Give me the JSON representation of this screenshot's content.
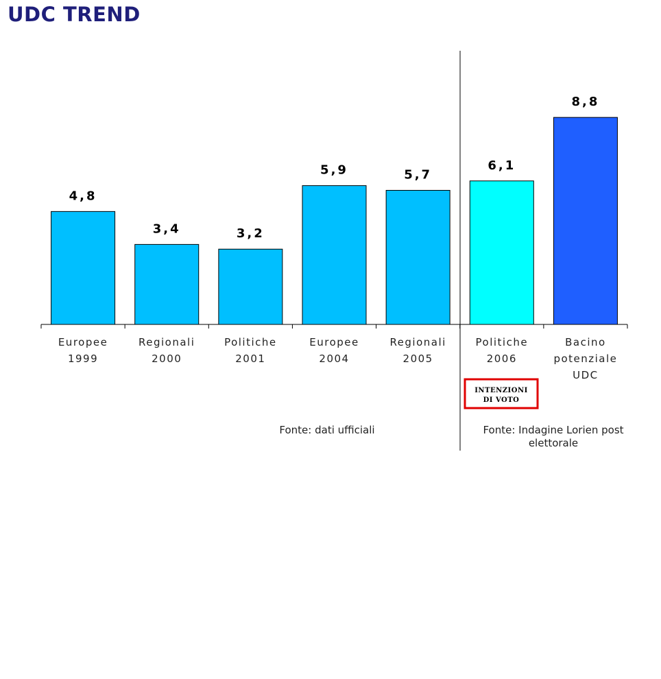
{
  "title": "UDC TREND",
  "colors": {
    "title": "#1f1f7a",
    "bar_official": "#00bfff",
    "bar_intention": "#00ffff",
    "bar_potential": "#1f5fff",
    "badge_border": "#e00000"
  },
  "chart_data": {
    "type": "bar",
    "categories": [
      [
        "Europee",
        "1999"
      ],
      [
        "Regionali",
        "2000"
      ],
      [
        "Politiche",
        "2001"
      ],
      [
        "Europee",
        "2004"
      ],
      [
        "Regionali",
        "2005"
      ],
      [
        "Politiche",
        "2006"
      ],
      [
        "Bacino",
        "potenziale",
        "UDC"
      ]
    ],
    "values": [
      4.8,
      3.4,
      3.2,
      5.9,
      5.7,
      6.1,
      8.8
    ],
    "value_labels": [
      "4,8",
      "3,4",
      "3,2",
      "5,9",
      "5,7",
      "6,1",
      "8,8"
    ],
    "bar_colors": [
      "#00bfff",
      "#00bfff",
      "#00bfff",
      "#00bfff",
      "#00bfff",
      "#00ffff",
      "#1f5fff"
    ],
    "ylim": [
      0,
      10
    ],
    "grid": false,
    "legend": "none",
    "annotations": {
      "badge": [
        "INTENZIONI",
        "DI VOTO"
      ],
      "source_left": "Fonte: dati ufficiali",
      "source_right": [
        "Fonte: Indagine Lorien post",
        "elettorale"
      ]
    }
  }
}
